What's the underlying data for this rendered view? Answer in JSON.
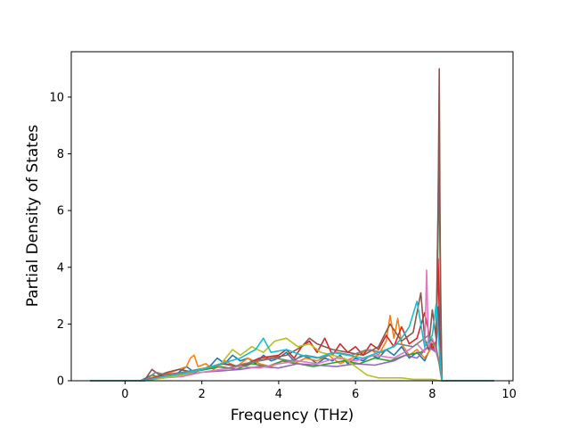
{
  "chart_data": {
    "type": "line",
    "title": "",
    "xlabel": "Frequency (THz)",
    "ylabel": "Partial Density of States",
    "xlim": [
      -1.4,
      10.1
    ],
    "ylim": [
      0,
      11.6
    ],
    "xticks": [
      0,
      2,
      4,
      6,
      8,
      10
    ],
    "yticks": [
      0,
      2,
      4,
      6,
      8,
      10
    ],
    "grid": false,
    "legend": "none",
    "series_count_note": "many overlapping per-atom projected DOS curves",
    "series": [
      {
        "color": "#1f77b4",
        "x": [
          -0.9,
          0.4,
          0.7,
          1.0,
          1.3,
          1.6,
          1.8,
          2.0,
          2.2,
          2.4,
          2.6,
          2.8,
          3.0,
          3.2,
          3.4,
          3.6,
          3.8,
          4.0,
          4.2,
          4.4,
          4.6,
          4.8,
          5.0,
          5.2,
          5.4,
          5.6,
          5.8,
          6.0,
          6.2,
          6.4,
          6.6,
          6.8,
          7.0,
          7.2,
          7.4,
          7.6,
          7.8,
          8.0,
          8.1,
          8.15,
          8.2,
          8.25,
          9.6
        ],
        "y": [
          0,
          0,
          0.2,
          0.1,
          0.2,
          0.5,
          0.3,
          0.4,
          0.5,
          0.8,
          0.6,
          0.9,
          0.7,
          0.8,
          0.6,
          0.9,
          0.7,
          0.8,
          1.0,
          0.7,
          0.9,
          0.8,
          0.6,
          0.8,
          0.7,
          0.9,
          0.6,
          0.8,
          0.7,
          0.9,
          0.8,
          1.1,
          0.9,
          1.2,
          0.8,
          1.0,
          0.7,
          1.3,
          1.2,
          2.6,
          0.4,
          0,
          0
        ]
      },
      {
        "color": "#ff7f0e",
        "x": [
          -0.9,
          0.4,
          0.8,
          1.2,
          1.6,
          1.7,
          1.8,
          1.9,
          2.1,
          2.3,
          2.6,
          2.9,
          3.2,
          3.5,
          3.8,
          4.1,
          4.4,
          4.7,
          5.0,
          5.3,
          5.6,
          5.9,
          6.2,
          6.4,
          6.6,
          6.8,
          6.9,
          7.0,
          7.1,
          7.2,
          7.4,
          7.6,
          7.8,
          8.0,
          8.1,
          8.2,
          8.25,
          9.6
        ],
        "y": [
          0,
          0,
          0.15,
          0.3,
          0.5,
          0.8,
          0.9,
          0.5,
          0.6,
          0.4,
          0.7,
          0.5,
          0.8,
          0.6,
          0.5,
          0.7,
          0.6,
          0.8,
          0.7,
          0.9,
          0.6,
          0.8,
          1.0,
          1.1,
          0.9,
          1.4,
          2.3,
          1.5,
          2.2,
          1.3,
          0.9,
          1.1,
          0.8,
          1.2,
          1.0,
          0.6,
          0,
          0
        ]
      },
      {
        "color": "#2ca02c",
        "x": [
          -0.9,
          0.5,
          0.9,
          1.3,
          1.7,
          2.1,
          2.5,
          2.9,
          3.3,
          3.7,
          4.1,
          4.5,
          4.9,
          5.3,
          5.7,
          6.1,
          6.5,
          6.9,
          7.3,
          7.7,
          8.0,
          8.1,
          8.18,
          8.22,
          8.25,
          9.6
        ],
        "y": [
          0,
          0,
          0.1,
          0.2,
          0.3,
          0.4,
          0.5,
          0.4,
          0.6,
          0.5,
          0.7,
          0.6,
          0.5,
          0.6,
          0.7,
          0.6,
          0.8,
          0.7,
          0.9,
          1.0,
          1.3,
          1.0,
          7.7,
          3.0,
          0,
          0
        ]
      },
      {
        "color": "#d62728",
        "x": [
          -0.9,
          0.5,
          1.0,
          1.5,
          2.0,
          2.5,
          3.0,
          3.5,
          4.0,
          4.2,
          4.4,
          4.6,
          4.8,
          5.0,
          5.2,
          5.4,
          5.6,
          5.8,
          6.0,
          6.2,
          6.4,
          6.6,
          6.8,
          7.0,
          7.2,
          7.4,
          7.6,
          7.8,
          8.0,
          8.1,
          8.15,
          8.2,
          8.25,
          9.6
        ],
        "y": [
          0,
          0,
          0.2,
          0.3,
          0.4,
          0.6,
          0.5,
          0.8,
          0.9,
          1.1,
          0.8,
          1.2,
          1.4,
          1.0,
          1.5,
          0.9,
          1.3,
          1.0,
          1.2,
          0.9,
          1.3,
          1.1,
          1.6,
          1.2,
          1.9,
          1.3,
          1.5,
          2.4,
          1.1,
          1.4,
          4.3,
          1.0,
          0,
          0
        ]
      },
      {
        "color": "#9467bd",
        "x": [
          -0.9,
          0.5,
          1.0,
          1.5,
          2.0,
          2.5,
          3.0,
          3.5,
          4.0,
          4.5,
          5.0,
          5.5,
          6.0,
          6.5,
          7.0,
          7.3,
          7.6,
          7.9,
          8.1,
          8.17,
          8.22,
          8.25,
          9.6
        ],
        "y": [
          0,
          0,
          0.1,
          0.2,
          0.3,
          0.35,
          0.4,
          0.5,
          0.45,
          0.6,
          0.55,
          0.5,
          0.6,
          0.55,
          0.7,
          0.9,
          0.8,
          1.2,
          1.0,
          8.4,
          2.0,
          0,
          0
        ]
      },
      {
        "color": "#8c564b",
        "x": [
          -0.9,
          0.5,
          0.7,
          0.9,
          1.1,
          1.4,
          1.8,
          2.2,
          2.6,
          3.0,
          3.4,
          3.8,
          4.2,
          4.6,
          4.8,
          5.0,
          5.4,
          5.8,
          6.2,
          6.6,
          6.9,
          7.2,
          7.5,
          7.7,
          7.8,
          7.9,
          8.0,
          8.1,
          8.15,
          8.18,
          8.21,
          8.25,
          9.6
        ],
        "y": [
          0,
          0,
          0.4,
          0.2,
          0.3,
          0.4,
          0.3,
          0.5,
          0.6,
          0.5,
          0.7,
          0.8,
          0.9,
          1.2,
          1.5,
          1.3,
          1.1,
          1.0,
          0.9,
          1.2,
          2.0,
          1.4,
          1.7,
          3.1,
          1.5,
          1.1,
          2.5,
          1.5,
          6.0,
          11.0,
          3.0,
          0,
          0
        ]
      },
      {
        "color": "#e377c2",
        "x": [
          -0.9,
          0.5,
          1.0,
          1.5,
          2.0,
          2.5,
          3.0,
          3.5,
          4.0,
          4.5,
          5.0,
          5.5,
          6.0,
          6.5,
          7.0,
          7.4,
          7.6,
          7.8,
          7.85,
          7.9,
          8.0,
          8.1,
          8.2,
          8.25,
          9.6
        ],
        "y": [
          0,
          0,
          0.1,
          0.15,
          0.3,
          0.4,
          0.5,
          0.45,
          0.6,
          0.7,
          0.6,
          0.8,
          0.7,
          0.9,
          0.8,
          1.1,
          1.3,
          1.0,
          3.9,
          1.2,
          1.5,
          1.0,
          0.5,
          0,
          0
        ]
      },
      {
        "color": "#7f7f7f",
        "x": [
          -0.9,
          0.5,
          0.8,
          1.1,
          1.5,
          1.9,
          2.3,
          2.7,
          3.1,
          3.5,
          3.9,
          4.3,
          4.7,
          5.1,
          5.5,
          5.9,
          6.3,
          6.7,
          7.1,
          7.5,
          7.9,
          8.1,
          8.2,
          8.25,
          9.6
        ],
        "y": [
          0,
          0,
          0.3,
          0.2,
          0.3,
          0.4,
          0.5,
          0.45,
          0.6,
          0.7,
          0.8,
          0.7,
          0.9,
          0.8,
          1.0,
          0.9,
          1.1,
          1.0,
          1.3,
          1.2,
          1.6,
          1.2,
          0.4,
          0,
          0
        ]
      },
      {
        "color": "#bcbd22",
        "x": [
          -0.9,
          0.5,
          1.0,
          1.5,
          2.0,
          2.5,
          2.8,
          3.0,
          3.3,
          3.6,
          3.9,
          4.2,
          4.5,
          4.8,
          5.1,
          5.4,
          5.7,
          6.0,
          6.3,
          6.6,
          6.9,
          7.2,
          7.5,
          7.8,
          8.0,
          8.2,
          8.25,
          9.6
        ],
        "y": [
          0,
          0,
          0.1,
          0.2,
          0.4,
          0.6,
          1.1,
          0.9,
          1.2,
          1.0,
          1.4,
          1.5,
          1.2,
          1.3,
          1.0,
          0.9,
          0.8,
          0.5,
          0.2,
          0.1,
          0.1,
          0.1,
          0.05,
          0.05,
          0.05,
          0,
          0,
          0
        ]
      },
      {
        "color": "#17becf",
        "x": [
          -0.9,
          0.5,
          1.0,
          1.5,
          2.0,
          2.5,
          3.0,
          3.4,
          3.6,
          3.8,
          4.2,
          4.6,
          5.0,
          5.4,
          5.8,
          6.2,
          6.6,
          7.0,
          7.2,
          7.4,
          7.6,
          7.8,
          8.0,
          8.1,
          8.2,
          8.25,
          9.6
        ],
        "y": [
          0,
          0,
          0.15,
          0.25,
          0.4,
          0.6,
          0.8,
          1.1,
          1.5,
          1.0,
          1.1,
          0.9,
          0.8,
          1.0,
          0.9,
          0.8,
          1.0,
          1.2,
          1.5,
          1.9,
          2.8,
          1.2,
          1.6,
          2.7,
          0.8,
          0,
          0
        ]
      }
    ]
  }
}
